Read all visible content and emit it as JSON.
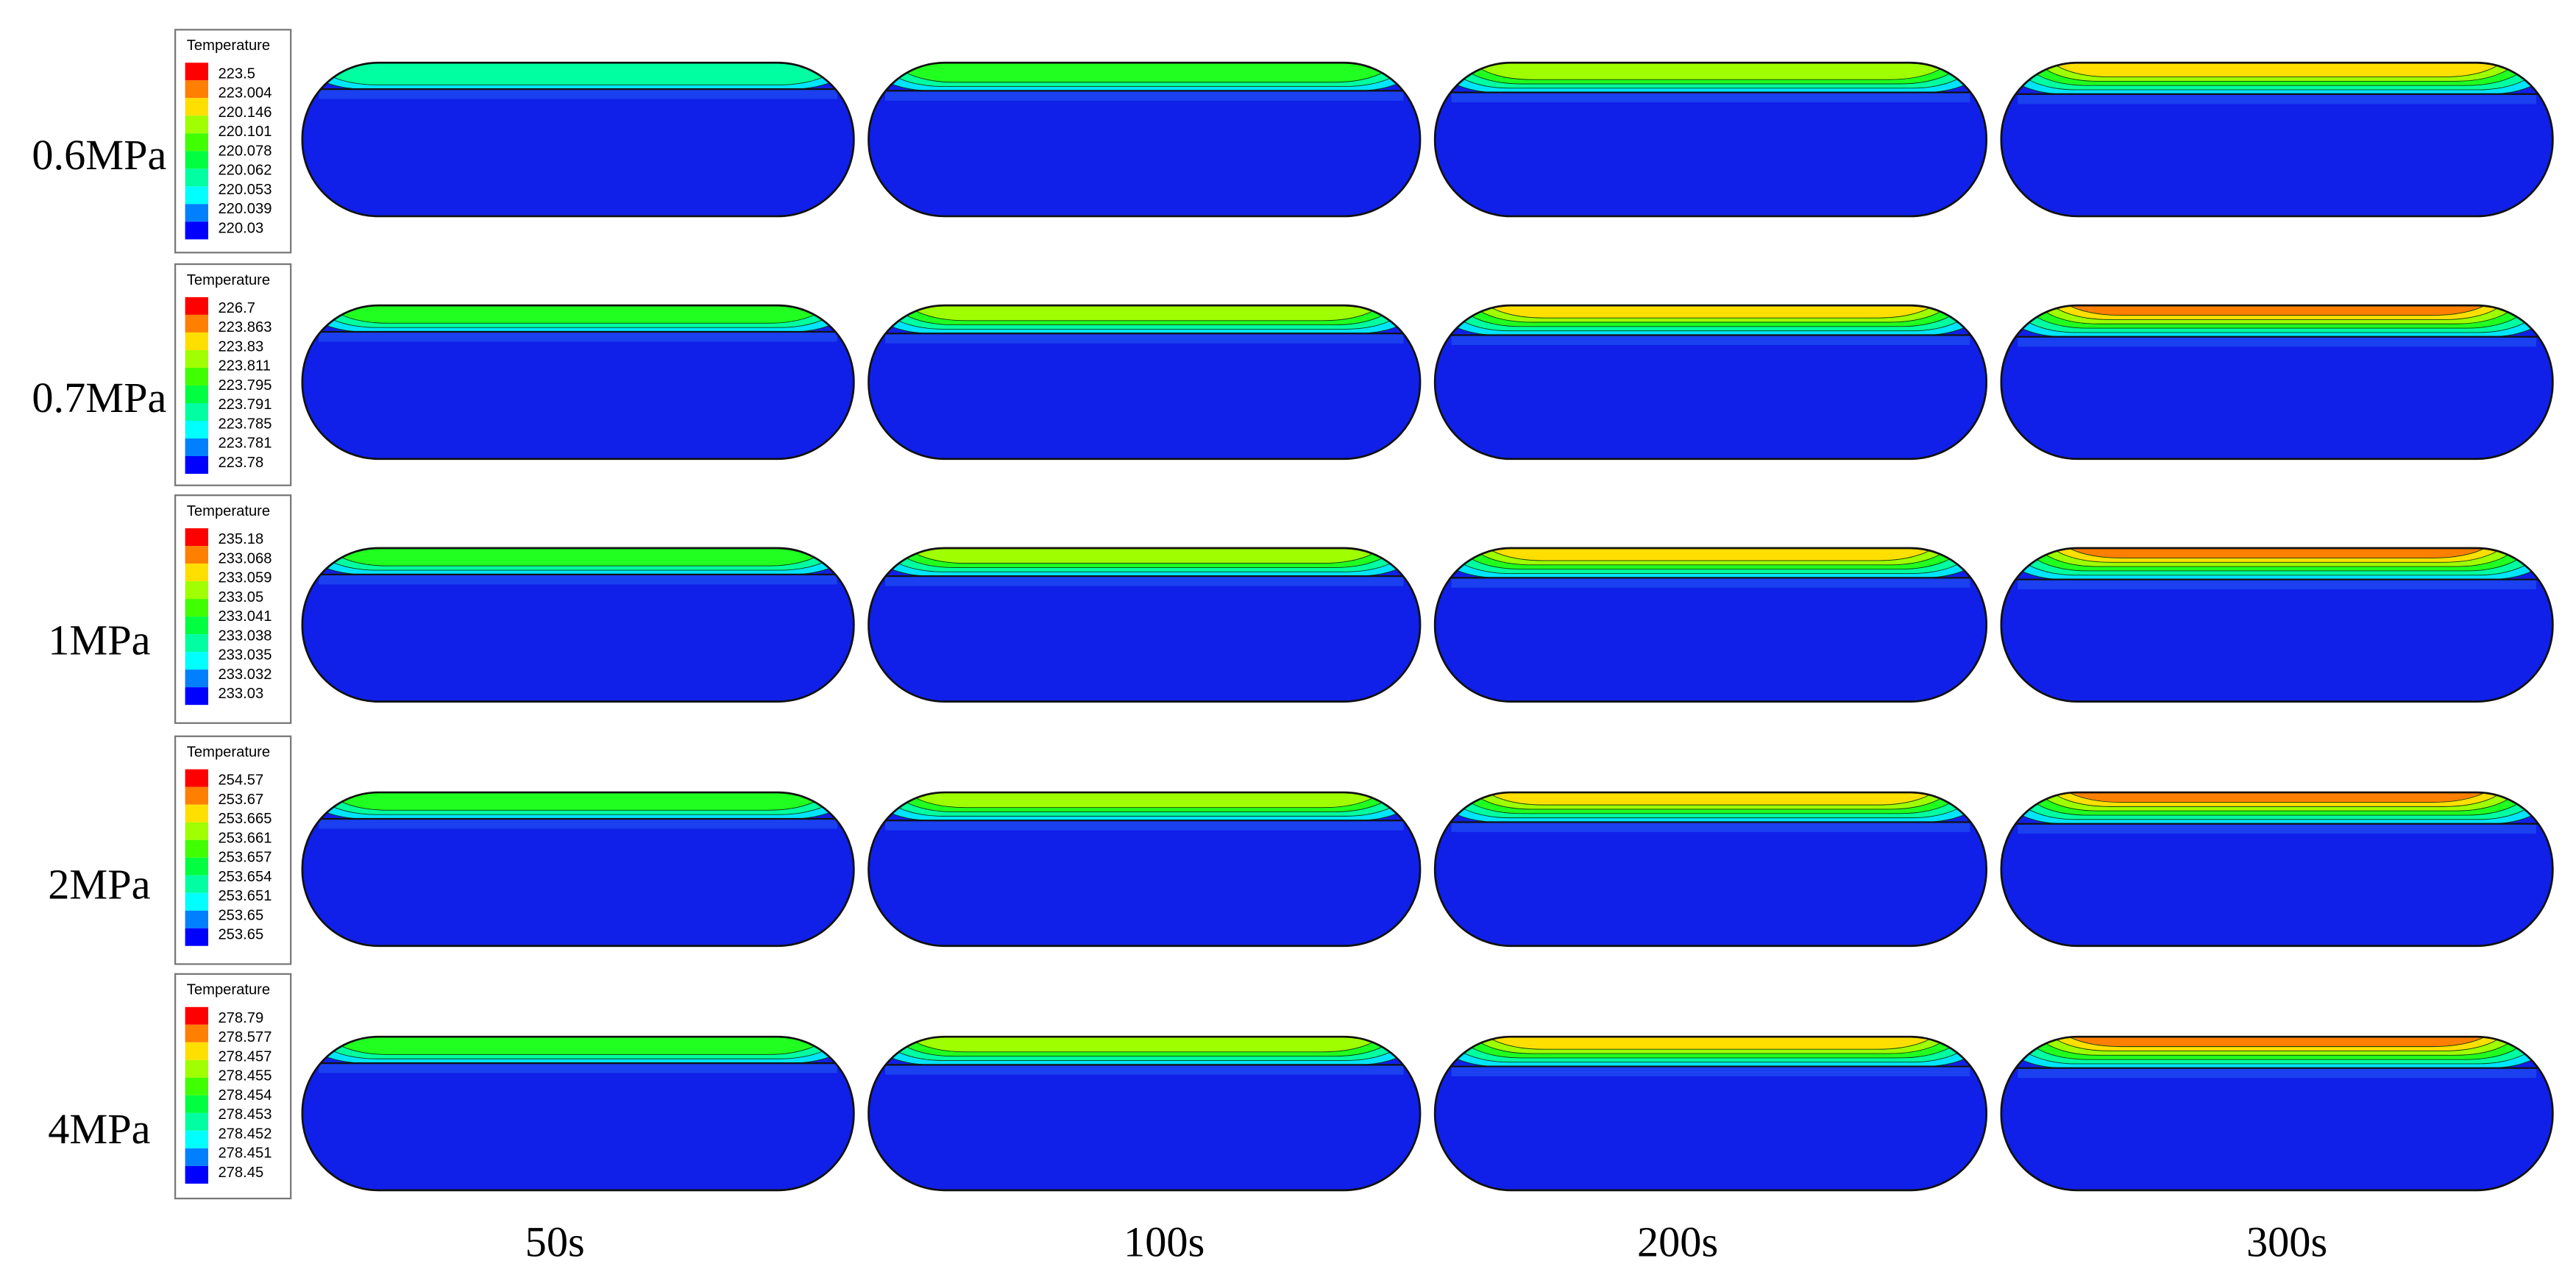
{
  "row_labels": [
    "0.6MPa",
    "0.7MPa",
    "1MPa",
    "2MPa",
    "4MPa"
  ],
  "column_labels": [
    "50s",
    "100s",
    "200s",
    "300s"
  ],
  "legends": [
    {
      "title": "Temperature",
      "labels": [
        "223.5",
        "223.004",
        "220.146",
        "220.101",
        "220.078",
        "220.062",
        "220.053",
        "220.039",
        "220.03"
      ]
    },
    {
      "title": "Temperature",
      "labels": [
        "226.7",
        "223.863",
        "223.83",
        "223.811",
        "223.795",
        "223.791",
        "223.785",
        "223.781",
        "223.78"
      ]
    },
    {
      "title": "Temperature",
      "labels": [
        "235.18",
        "233.068",
        "233.059",
        "233.05",
        "233.041",
        "233.038",
        "233.035",
        "233.032",
        "233.03"
      ]
    },
    {
      "title": "Temperature",
      "labels": [
        "254.57",
        "253.67",
        "253.665",
        "253.661",
        "253.657",
        "253.654",
        "253.651",
        "253.65",
        "253.65"
      ]
    },
    {
      "title": "Temperature",
      "labels": [
        "278.79",
        "278.577",
        "278.457",
        "278.455",
        "278.454",
        "278.453",
        "278.452",
        "278.451",
        "278.45"
      ]
    }
  ]
}
